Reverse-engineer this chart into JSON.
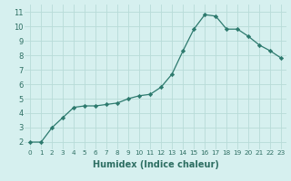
{
  "x": [
    0,
    1,
    2,
    3,
    4,
    5,
    6,
    7,
    8,
    9,
    10,
    11,
    12,
    13,
    14,
    15,
    16,
    17,
    18,
    19,
    20,
    21,
    22,
    23
  ],
  "y": [
    2.0,
    2.0,
    3.0,
    3.7,
    4.4,
    4.5,
    4.5,
    4.6,
    4.7,
    5.0,
    5.2,
    5.3,
    5.8,
    6.7,
    8.3,
    9.8,
    10.8,
    10.7,
    9.8,
    9.8,
    9.3,
    8.7,
    8.3,
    7.8
  ],
  "line_color": "#2d7a6e",
  "marker": "D",
  "marker_size": 2.2,
  "bg_color": "#d6f0ef",
  "grid_color": "#b8dbd8",
  "xlabel": "Humidex (Indice chaleur)",
  "xlim": [
    -0.5,
    23.5
  ],
  "ylim": [
    1.5,
    11.5
  ],
  "yticks": [
    2,
    3,
    4,
    5,
    6,
    7,
    8,
    9,
    10,
    11
  ],
  "xticks": [
    0,
    1,
    2,
    3,
    4,
    5,
    6,
    7,
    8,
    9,
    10,
    11,
    12,
    13,
    14,
    15,
    16,
    17,
    18,
    19,
    20,
    21,
    22,
    23
  ],
  "tick_color": "#2d6e62",
  "xlabel_color": "#2d6e62",
  "xlabel_fontsize": 7.0,
  "tick_fontsize_x": 5.2,
  "tick_fontsize_y": 6.0
}
